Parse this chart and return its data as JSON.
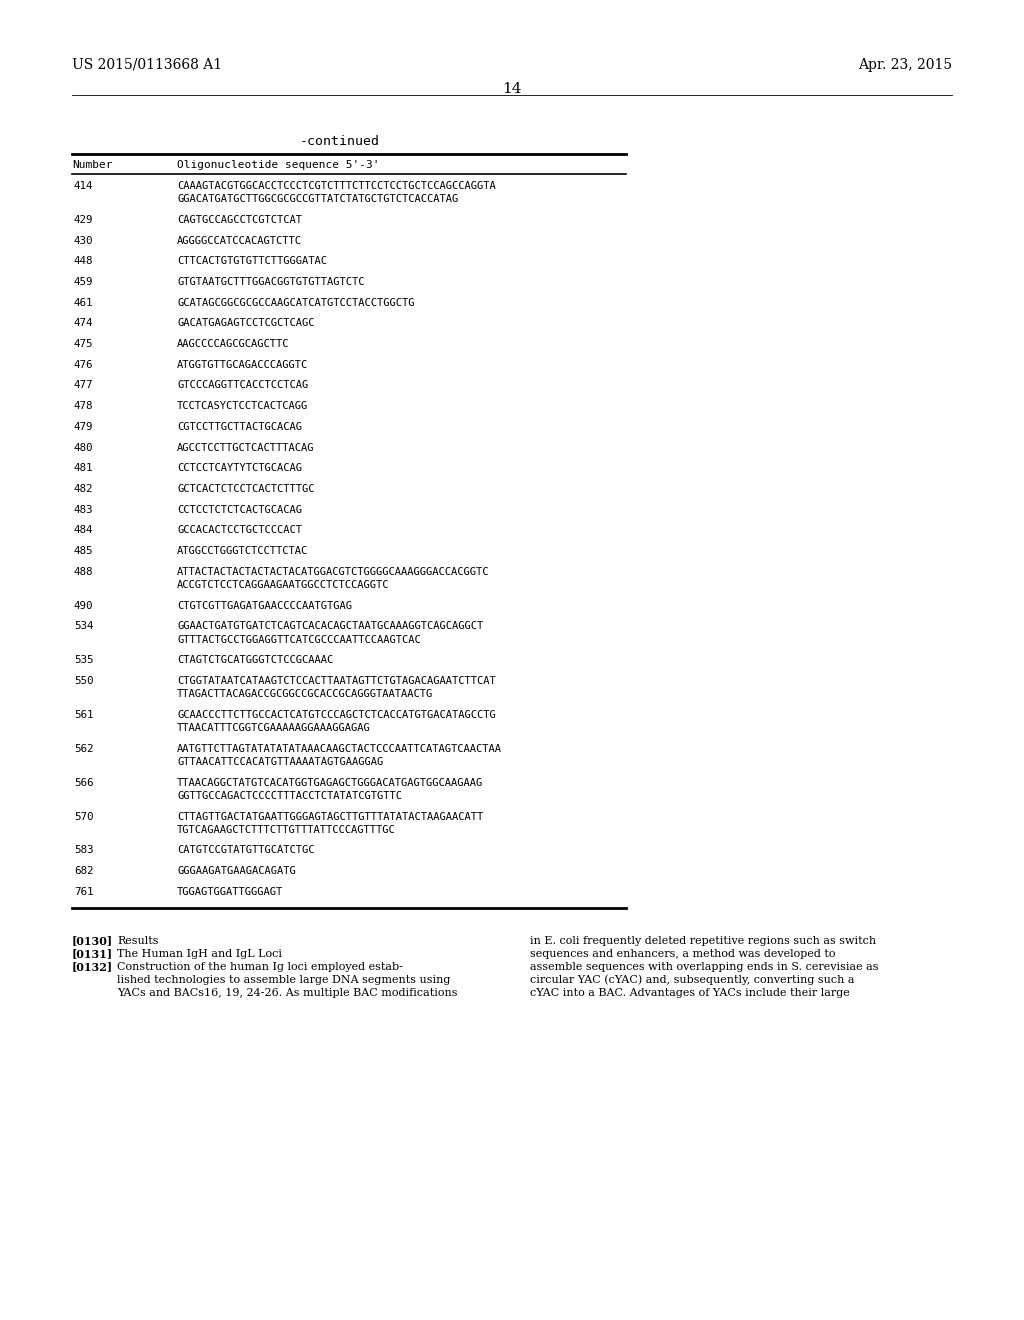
{
  "background_color": "#ffffff",
  "page_header_left": "US 2015/0113668 A1",
  "page_header_right": "Apr. 23, 2015",
  "page_number": "14",
  "continued_label": "-continued",
  "table_col1_header": "Number",
  "table_col2_header": "Oligonucleotide sequence 5'-3'",
  "table_rows": [
    {
      "num": "414",
      "seq": "CAAAGTACGTGGCACCTCCCTCGTCTTTCTTCCTCCTGCTCCAGCCAGGTA\nGGACATGATGCTTGGCGCGCCGTTATCTATGCTGTCTCACCATAG"
    },
    {
      "num": "429",
      "seq": "CAGTGCCAGCCTCGTCTCAT"
    },
    {
      "num": "430",
      "seq": "AGGGGCCATCCACAGTCTTC"
    },
    {
      "num": "448",
      "seq": "CTTCACTGTGTGTTCTTGGGATAC"
    },
    {
      "num": "459",
      "seq": "GTGTAATGCTTTGGACGGTGTGTTAGTCTC"
    },
    {
      "num": "461",
      "seq": "GCATAGCGGCGCGCCAAGCATCATGTCCTACCTGGCTG"
    },
    {
      "num": "474",
      "seq": "GACATGAGAGTCCTCGCTCAGC"
    },
    {
      "num": "475",
      "seq": "AAGCCCCAGCGCAGCTTC"
    },
    {
      "num": "476",
      "seq": "ATGGTGTTGCAGACCCAGGTC"
    },
    {
      "num": "477",
      "seq": "GTCCCAGGTTCACCTCCTCAG"
    },
    {
      "num": "478",
      "seq": "TCCTCASYCTCCTCACTCAGG"
    },
    {
      "num": "479",
      "seq": "CGTCCTTGCTTACTGCACAG"
    },
    {
      "num": "480",
      "seq": "AGCCTCCTTGCTCACTTTACAG"
    },
    {
      "num": "481",
      "seq": "CCTCCTCAYTYTCTGCACAG"
    },
    {
      "num": "482",
      "seq": "GCTCACTCTCCTCACTCTTTGC"
    },
    {
      "num": "483",
      "seq": "CCTCCTCTCTCACTGCACAG"
    },
    {
      "num": "484",
      "seq": "GCCACACTCCTGCTCCCACT"
    },
    {
      "num": "485",
      "seq": "ATGGCCTGGGTCTCCTTCTAC"
    },
    {
      "num": "488",
      "seq": "ATTACTACTACTACTACTACATGGACGTCTGGGGCAAAGGGACCACGGTC\nACCGTCTCCTCAGGAAGAATGGCCTCTCCAGGTC"
    },
    {
      "num": "490",
      "seq": "CTGTCGTTGAGATGAACCCCAATGTGAG"
    },
    {
      "num": "534",
      "seq": "GGAACTGATGTGATCTCAGTCACACAGCTAATGCAAAGGTCAGCAGGCT\nGTTTACTGCCTGGAGGTTCATCGCCCAATTCCAAGTCAC"
    },
    {
      "num": "535",
      "seq": "CTAGTCTGCATGGGTCTCCGCAAAC"
    },
    {
      "num": "550",
      "seq": "CTGGTATAATCATAAGTCTCCACTTAATAGTTCTGTAGACAGAATCTTCAT\nTTAGACTTACAGACCGCGGCCGCACCGCAGGGTAATAACTG"
    },
    {
      "num": "561",
      "seq": "GCAACCCTTCTTGCCACTCATGTCCCAGCTCTCACCATGTGACATAGCCTG\nTTAACATTTCGGTCGAAAAAGGAAAGGAGAG"
    },
    {
      "num": "562",
      "seq": "AATGTTCTTAGTATATATATAAACAAGCTACTCCCAATTCATAGTCAACTAA\nGTTAACAТТCCACATGTTAAAATAGTGAAGGAG"
    },
    {
      "num": "566",
      "seq": "TTAACAGGCTATGTCACATGGTGAGAGCTGGGACATGAGTGGCAAGAAG\nGGTTGCCAGACTCCCCTTTACCTCTATATCGTGTTC"
    },
    {
      "num": "570",
      "seq": "CTTAGTTGACTATGAATTGGGAGTAGCTTGTTTATATACTAAGAACATT\nTGTCAGAAGCTCTTTCTTGTTTATTCCCAGTTTGC"
    },
    {
      "num": "583",
      "seq": "CATGTCCGTATGTTGCATCTGC"
    },
    {
      "num": "682",
      "seq": "GGGAAGATGAAGACAGATG"
    },
    {
      "num": "761",
      "seq": "TGGAGTGGATTGGGAGT"
    }
  ],
  "footnote_left": [
    {
      "tag": "[0130]",
      "indent": false,
      "text": "Results"
    },
    {
      "tag": "[0131]",
      "indent": false,
      "text": "The Human IgH and IgL Loci"
    },
    {
      "tag": "[0132]",
      "indent": false,
      "text": "Construction of the human Ig loci employed estab-"
    },
    {
      "tag": "",
      "indent": true,
      "text": "lished technologies to assemble large DNA segments using"
    },
    {
      "tag": "",
      "indent": true,
      "text": "YACs and BACs"
    },
    {
      "tag": "",
      "indent": true,
      "text": ". As multiple BAC modifications"
    }
  ],
  "footnote_left_lines": [
    "[0130]  Results",
    "[0131]  The Human IgH and IgL Loci",
    "[0132]  Construction of the human Ig loci employed estab-",
    "lished technologies to assemble large DNA segments using",
    "YACs and BACs16, 19, 24-26. As multiple BAC modifications"
  ],
  "footnote_right_lines": [
    "in E. coli frequently deleted repetitive regions such as switch",
    "sequences and enhancers, a method was developed to",
    "assemble sequences with overlapping ends in S. cerevisiae as",
    "circular YAC (cYAC) and, subsequently, converting such a",
    "cYAC into a BAC. Advantages of YACs include their large"
  ]
}
